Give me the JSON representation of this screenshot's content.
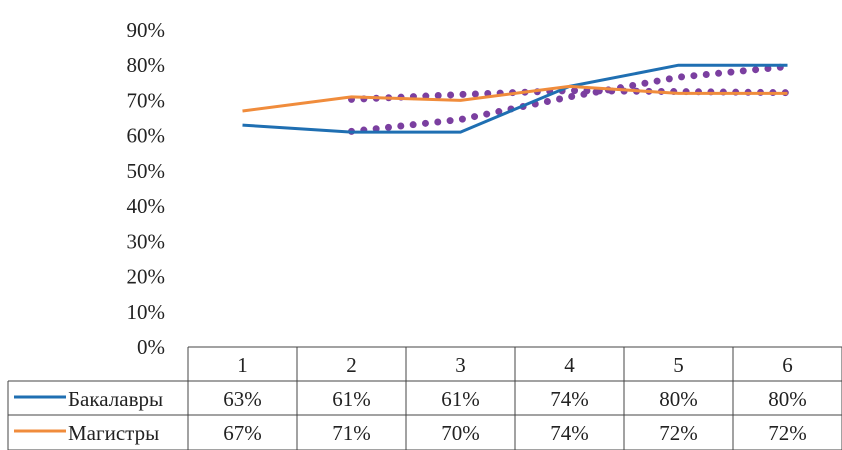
{
  "chart_data": {
    "type": "line",
    "title": "",
    "xlabel": "",
    "ylabel": "",
    "ylim": [
      0,
      0.9
    ],
    "y_tick_labels": [
      "0%",
      "10%",
      "20%",
      "30%",
      "40%",
      "50%",
      "60%",
      "70%",
      "80%",
      "90%"
    ],
    "categories": [
      "1",
      "2",
      "3",
      "4",
      "5",
      "6"
    ],
    "legend_placement": "data-table",
    "grid": false,
    "series": [
      {
        "name": "Бакалавры",
        "values": [
          0.63,
          0.61,
          0.61,
          0.74,
          0.8,
          0.8
        ],
        "value_labels": [
          "63%",
          "61%",
          "61%",
          "74%",
          "80%",
          "80%"
        ],
        "color": "#1f6fb2",
        "trendline": {
          "style": "dotted",
          "color": "#7b3fa0",
          "values": [
            0.617,
            0.612,
            0.646,
            0.71,
            0.766,
            0.796
          ]
        }
      },
      {
        "name": "Магистры",
        "values": [
          0.67,
          0.71,
          0.7,
          0.74,
          0.72,
          0.72
        ],
        "value_labels": [
          "67%",
          "71%",
          "70%",
          "74%",
          "72%",
          "72%"
        ],
        "color": "#f08c3c",
        "trendline": {
          "style": "dotted",
          "color": "#7b3fa0",
          "values": [
            0.691,
            0.703,
            0.717,
            0.728,
            0.725,
            0.722
          ]
        }
      }
    ]
  }
}
